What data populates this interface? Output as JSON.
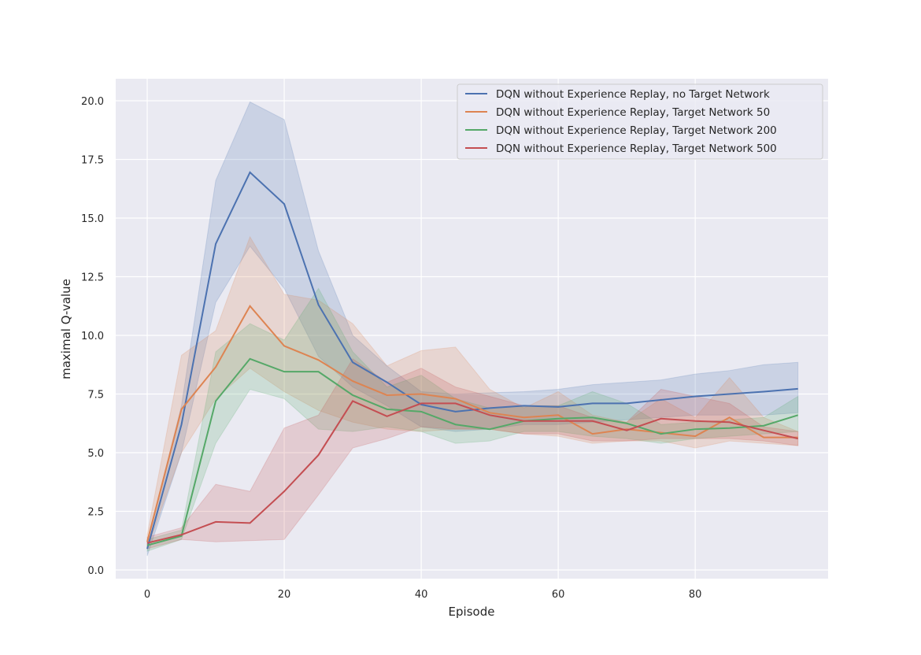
{
  "chart_data": {
    "type": "line",
    "title": "",
    "xlabel": "Episode",
    "ylabel": "maximal Q-value",
    "xlim": [
      -4.6,
      99.4
    ],
    "ylim": [
      -0.37,
      20.94
    ],
    "xticks": [
      0,
      20,
      40,
      60,
      80
    ],
    "yticks": [
      0.0,
      2.5,
      5.0,
      7.5,
      10.0,
      12.5,
      15.0,
      17.5,
      20.0
    ],
    "ytick_labels": [
      "0.0",
      "2.5",
      "5.0",
      "7.5",
      "10.0",
      "12.5",
      "15.0",
      "17.5",
      "20.0"
    ],
    "grid": true,
    "legend_position": "top-right",
    "x": [
      0,
      5,
      10,
      15,
      20,
      25,
      30,
      35,
      40,
      45,
      50,
      55,
      60,
      65,
      70,
      75,
      80,
      85,
      90,
      95
    ],
    "series": [
      {
        "name": "DQN without Experience Replay, no Target Network",
        "color": "#4c72b0",
        "values": [
          0.9,
          6.2,
          13.9,
          16.95,
          15.6,
          11.3,
          8.85,
          8.0,
          7.05,
          6.75,
          6.9,
          7.0,
          6.95,
          7.1,
          7.1,
          7.25,
          7.4,
          7.5,
          7.6,
          7.72
        ],
        "upper": [
          1.2,
          7.0,
          16.6,
          19.95,
          19.2,
          13.6,
          10.0,
          8.7,
          7.6,
          7.5,
          7.55,
          7.6,
          7.7,
          7.9,
          8.0,
          8.1,
          8.35,
          8.5,
          8.75,
          8.85
        ],
        "lower": [
          0.6,
          5.0,
          11.4,
          13.8,
          12.0,
          9.1,
          7.8,
          7.0,
          6.1,
          5.9,
          6.0,
          6.2,
          6.2,
          6.3,
          6.4,
          6.5,
          6.6,
          6.6,
          6.6,
          6.7
        ]
      },
      {
        "name": "DQN without Experience Replay, Target Network 50",
        "color": "#dd8452",
        "values": [
          1.2,
          6.85,
          8.65,
          11.25,
          9.55,
          8.95,
          8.05,
          7.45,
          7.5,
          7.3,
          6.7,
          6.5,
          6.6,
          5.8,
          6.0,
          5.85,
          5.7,
          6.5,
          5.65,
          5.65
        ],
        "upper": [
          1.5,
          9.15,
          10.2,
          14.2,
          11.75,
          11.5,
          10.5,
          8.7,
          9.35,
          9.5,
          7.7,
          6.9,
          7.6,
          6.6,
          6.3,
          7.3,
          6.5,
          8.2,
          6.5,
          5.9
        ],
        "lower": [
          0.9,
          5.0,
          7.3,
          8.6,
          7.6,
          6.8,
          6.3,
          6.0,
          5.9,
          6.0,
          6.0,
          5.8,
          5.7,
          5.4,
          5.5,
          5.5,
          5.2,
          5.5,
          5.4,
          5.3
        ]
      },
      {
        "name": "DQN without Experience Replay, Target Network 200",
        "color": "#55a868",
        "values": [
          1.05,
          1.45,
          7.2,
          9.0,
          8.45,
          8.45,
          7.45,
          6.85,
          6.75,
          6.2,
          6.0,
          6.35,
          6.45,
          6.5,
          6.25,
          5.8,
          6.0,
          6.05,
          6.15,
          6.6
        ],
        "upper": [
          1.3,
          1.7,
          9.3,
          10.5,
          9.8,
          12.0,
          9.3,
          7.8,
          8.3,
          7.3,
          6.9,
          7.0,
          7.0,
          7.6,
          7.1,
          6.2,
          6.3,
          6.4,
          6.5,
          7.4
        ],
        "lower": [
          0.8,
          1.3,
          5.4,
          7.7,
          7.3,
          6.0,
          5.9,
          6.1,
          5.9,
          5.4,
          5.5,
          5.9,
          5.9,
          5.7,
          5.6,
          5.4,
          5.6,
          5.7,
          5.8,
          5.9
        ]
      },
      {
        "name": "DQN without Experience Replay, Target Network 500",
        "color": "#c44e52",
        "values": [
          1.15,
          1.5,
          2.05,
          2.0,
          3.35,
          4.9,
          7.2,
          6.55,
          7.1,
          7.1,
          6.6,
          6.35,
          6.35,
          6.35,
          5.95,
          6.45,
          6.35,
          6.3,
          5.95,
          5.6
        ],
        "upper": [
          1.4,
          1.8,
          3.65,
          3.35,
          6.05,
          6.6,
          9.0,
          8.0,
          8.6,
          7.8,
          7.4,
          7.0,
          7.0,
          6.5,
          6.3,
          7.7,
          7.4,
          7.1,
          6.1,
          5.9
        ],
        "lower": [
          0.9,
          1.3,
          1.2,
          1.25,
          1.3,
          3.2,
          5.2,
          5.6,
          6.1,
          6.0,
          6.0,
          5.8,
          5.8,
          5.5,
          5.5,
          5.6,
          5.6,
          5.6,
          5.5,
          5.3
        ]
      }
    ]
  }
}
